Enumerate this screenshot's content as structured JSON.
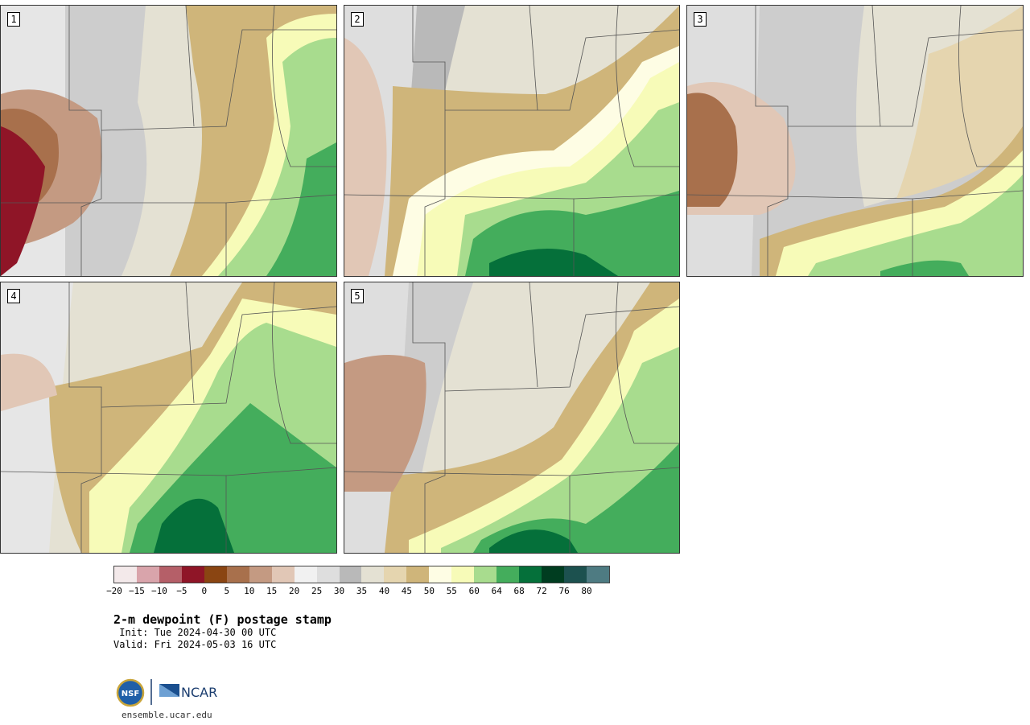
{
  "title": "2-m dewpoint (F) postage stamp",
  "init": " Init: Tue 2024-04-30 00 UTC",
  "valid": "Valid: Fri 2024-05-03 16 UTC",
  "url": "ensemble.ucar.edu",
  "logo_text": "NCAR",
  "logo_seal_text": "NSF",
  "panels": [
    {
      "label": "1"
    },
    {
      "label": "2"
    },
    {
      "label": "3"
    },
    {
      "label": "4"
    },
    {
      "label": "5"
    }
  ],
  "colorbar": {
    "colors": [
      "#f3e9ea",
      "#d9a4ab",
      "#b55f68",
      "#8f1527",
      "#8a4512",
      "#a8704c",
      "#c49a82",
      "#e1c7b6",
      "#f1f1f1",
      "#dedede",
      "#b9b9b9",
      "#e4e1d3",
      "#e5d5af",
      "#cfb57a",
      "#fefde4",
      "#f7fbb8",
      "#a8dc8e",
      "#44ad5c",
      "#05703a",
      "#003d20",
      "#1c514f",
      "#4e7b82"
    ],
    "ticks": [
      "−20",
      "−15",
      "−10",
      "−5",
      "0",
      "5",
      "10",
      "15",
      "20",
      "25",
      "30",
      "35",
      "40",
      "45",
      "50",
      "55",
      "60",
      "64",
      "68",
      "72",
      "76",
      "80"
    ]
  }
}
